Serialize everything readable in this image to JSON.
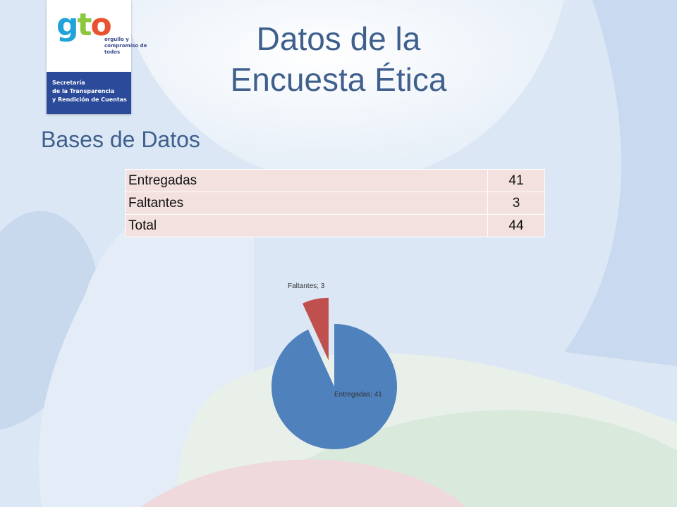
{
  "slide": {
    "title_line1": "Datos de la",
    "title_line2": "Encuesta Ética",
    "subtitle": "Bases de Datos"
  },
  "logo": {
    "word": [
      "g",
      "t",
      "o"
    ],
    "tagline": "orgullo y compromiso de todos",
    "department": [
      "Secretaría",
      "de la Transparencia",
      "y Rendición de Cuentas"
    ]
  },
  "table": {
    "rows": [
      {
        "label": "Entregadas",
        "value": "41"
      },
      {
        "label": "Faltantes",
        "value": "3"
      },
      {
        "label": "Total",
        "value": "44"
      }
    ]
  },
  "colors": {
    "title": "#3f5f8c",
    "slice_entregadas": "#4f81bd",
    "slice_faltantes": "#c0504d",
    "table_fill": "#f2e1de"
  },
  "chart_data": {
    "type": "pie",
    "exploded": true,
    "slices": [
      {
        "category": "Entregadas",
        "value": 41,
        "label": "Entregadas; 41",
        "color": "#4f81bd"
      },
      {
        "category": "Faltantes",
        "value": 3,
        "label": "Faltantes; 3",
        "color": "#c0504d"
      }
    ],
    "legend": "none"
  }
}
